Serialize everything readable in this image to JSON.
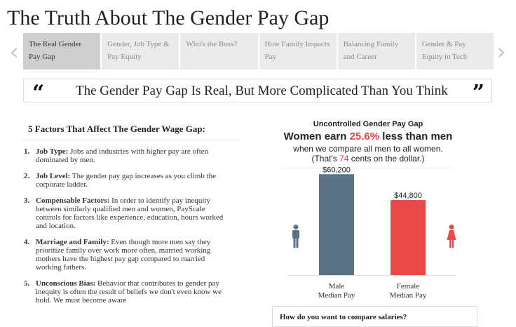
{
  "page": {
    "title": "The Truth About The Gender Pay Gap"
  },
  "nav": {
    "prev_icon": "chevron-left-icon",
    "next_icon": "chevron-right-icon",
    "tabs": [
      {
        "label": "The Real Gender Pay Gap",
        "active": true
      },
      {
        "label": "Gender, Job Type & Pay Equity",
        "active": false
      },
      {
        "label": "Who's the Boss?",
        "active": false
      },
      {
        "label": "How Family Impacts Pay",
        "active": false
      },
      {
        "label": "Balancing Family and Career",
        "active": false
      },
      {
        "label": "Gender & Pay Equity in Tech",
        "active": false
      }
    ]
  },
  "quote": {
    "open_mark": "“",
    "close_mark": "”",
    "text": "The Gender Pay Gap Is Real, But More Complicated Than You Think"
  },
  "factors": {
    "title": "5 Factors That Affect The Gender Wage Gap:",
    "items": [
      {
        "num": "1.",
        "term": "Job Type:",
        "text": " Jobs and industries with higher pay are often dominated by men."
      },
      {
        "num": "2.",
        "term": "Job Level:",
        "text": " The gender pay gap increases as you climb the corporate ladder."
      },
      {
        "num": "3.",
        "term": "Compensable Factors:",
        "text": " In order to identify pay inequity between similarly qualified men and women, PayScale controls for factors like experience, education, hours worked and location."
      },
      {
        "num": "4.",
        "term": "Marriage and Family:",
        "text": " Even though more men say they prioritize family over work more often, married working mothers have the highest pay gap compared to married working fathers."
      },
      {
        "num": "5.",
        "term": "Unconscious Bias:",
        "text": " Behavior that contributes to gender pay inequity is often the result of beliefs we don't even know we hold. We must become aware"
      }
    ]
  },
  "chart_panel": {
    "title": "Uncontrolled Gender Pay Gap",
    "headline_pre": "Women earn ",
    "headline_pct": "25.6%",
    "headline_post": " less than men",
    "sub1": "when we compare all men to all women.",
    "sub2_pre": "(That's ",
    "sub2_num": "74",
    "sub2_post": " cents on the dollar.)",
    "male_icon": "male-person-icon",
    "female_icon": "female-person-icon"
  },
  "chart_data": {
    "type": "bar",
    "categories": [
      "Male Median Pay",
      "Female Median Pay"
    ],
    "category_lines": [
      [
        "Male",
        "Median Pay"
      ],
      [
        "Female",
        "Median Pay"
      ]
    ],
    "values": [
      60200,
      44800
    ],
    "value_labels": [
      "$60,200",
      "$44,800"
    ],
    "colors": [
      "#5b7185",
      "#e84a4a"
    ],
    "ylim": [
      0,
      62000
    ],
    "title": "Uncontrolled Gender Pay Gap",
    "xlabel": "",
    "ylabel": "",
    "grid": false
  },
  "compare": {
    "question": "How do you want to compare salaries?"
  }
}
